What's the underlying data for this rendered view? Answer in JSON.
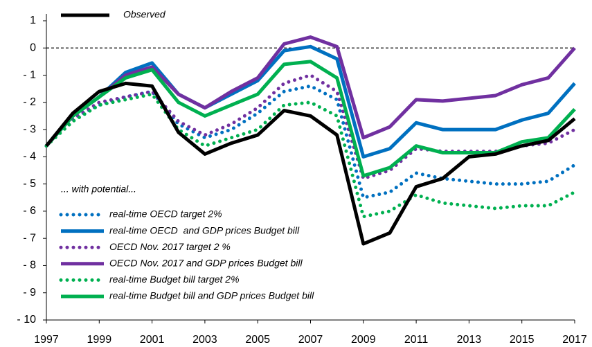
{
  "chart_data": {
    "type": "line",
    "x": [
      1997,
      1998,
      1999,
      2000,
      2001,
      2002,
      2003,
      2004,
      2005,
      2006,
      2007,
      2008,
      2009,
      2010,
      2011,
      2012,
      2013,
      2014,
      2015,
      2016,
      2017
    ],
    "xlim": [
      1997,
      2017
    ],
    "xticks": [
      1997,
      1999,
      2001,
      2003,
      2005,
      2007,
      2009,
      2011,
      2013,
      2015,
      2017
    ],
    "ylim": [
      -10,
      1
    ],
    "yticks": [
      1,
      0,
      {
        "value": -1,
        "label": "- 1"
      },
      {
        "value": -2,
        "label": "- 2"
      },
      {
        "value": -3,
        "label": "- 3"
      },
      {
        "value": -4,
        "label": "- 4"
      },
      {
        "value": -5,
        "label": "- 5"
      },
      {
        "value": -6,
        "label": "- 6"
      },
      {
        "value": -7,
        "label": "- 7"
      },
      {
        "value": -8,
        "label": "- 8"
      },
      {
        "value": -9,
        "label": "- 9"
      },
      {
        "value": -10,
        "label": "- 10"
      }
    ],
    "zero_line": true,
    "annotation": "... with potential...",
    "series": [
      {
        "name": "Observed",
        "color": "#000000",
        "style": "solid",
        "values": [
          -3.6,
          -2.4,
          -1.6,
          -1.3,
          -1.4,
          -3.1,
          -3.9,
          -3.5,
          -3.2,
          -2.3,
          -2.5,
          -3.2,
          -7.2,
          -6.8,
          -5.1,
          -4.8,
          -4.0,
          -3.9,
          -3.6,
          -3.4,
          -2.6
        ]
      },
      {
        "name": "real-time OECD target 2%",
        "color": "#0070c0",
        "style": "dotted",
        "values": [
          -3.6,
          -2.6,
          -2.1,
          -1.8,
          -1.6,
          -2.8,
          -3.3,
          -3.0,
          -2.4,
          -1.6,
          -1.4,
          -1.9,
          -5.5,
          -5.3,
          -4.6,
          -4.8,
          -4.9,
          -5.0,
          -5.0,
          -4.9,
          -4.3
        ]
      },
      {
        "name": "real-time OECD  and GDP prices Budget bill",
        "color": "#0070c0",
        "style": "solid",
        "values": [
          -3.6,
          -2.5,
          -1.8,
          -0.9,
          -0.55,
          -1.7,
          -2.2,
          -1.7,
          -1.2,
          -0.1,
          0.05,
          -0.4,
          -4.0,
          -3.7,
          -2.75,
          -3.0,
          -3.0,
          -3.0,
          -2.65,
          -2.4,
          -1.3
        ]
      },
      {
        "name": "OECD Nov. 2017 target 2 %",
        "color": "#7030a0",
        "style": "dotted",
        "values": [
          -3.6,
          -2.6,
          -2.0,
          -1.8,
          -1.6,
          -2.7,
          -3.2,
          -2.8,
          -2.2,
          -1.3,
          -1.0,
          -1.6,
          -4.8,
          -4.5,
          -3.7,
          -3.8,
          -3.8,
          -3.8,
          -3.6,
          -3.5,
          -3.0
        ]
      },
      {
        "name": "OECD Nov. 2017 and GDP prices Budget bill",
        "color": "#7030a0",
        "style": "solid",
        "values": [
          -3.6,
          -2.5,
          -1.8,
          -1.0,
          -0.7,
          -1.7,
          -2.2,
          -1.6,
          -1.1,
          0.15,
          0.4,
          0.05,
          -3.3,
          -2.9,
          -1.9,
          -1.95,
          -1.85,
          -1.75,
          -1.35,
          -1.1,
          0.0
        ]
      },
      {
        "name": "real-time Budget bill target 2%",
        "color": "#00b050",
        "style": "dotted",
        "values": [
          -3.6,
          -2.7,
          -2.1,
          -1.9,
          -1.7,
          -3.0,
          -3.6,
          -3.3,
          -3.0,
          -2.1,
          -2.0,
          -2.5,
          -6.2,
          -6.0,
          -5.4,
          -5.7,
          -5.8,
          -5.9,
          -5.8,
          -5.8,
          -5.3
        ]
      },
      {
        "name": "real-time Budget bill and GDP prices Budget bill",
        "color": "#00b050",
        "style": "solid",
        "values": [
          -3.6,
          -2.5,
          -1.8,
          -1.1,
          -0.8,
          -2.0,
          -2.5,
          -2.1,
          -1.7,
          -0.6,
          -0.5,
          -1.1,
          -4.7,
          -4.4,
          -3.6,
          -3.85,
          -3.85,
          -3.85,
          -3.45,
          -3.3,
          -2.25
        ]
      }
    ]
  }
}
